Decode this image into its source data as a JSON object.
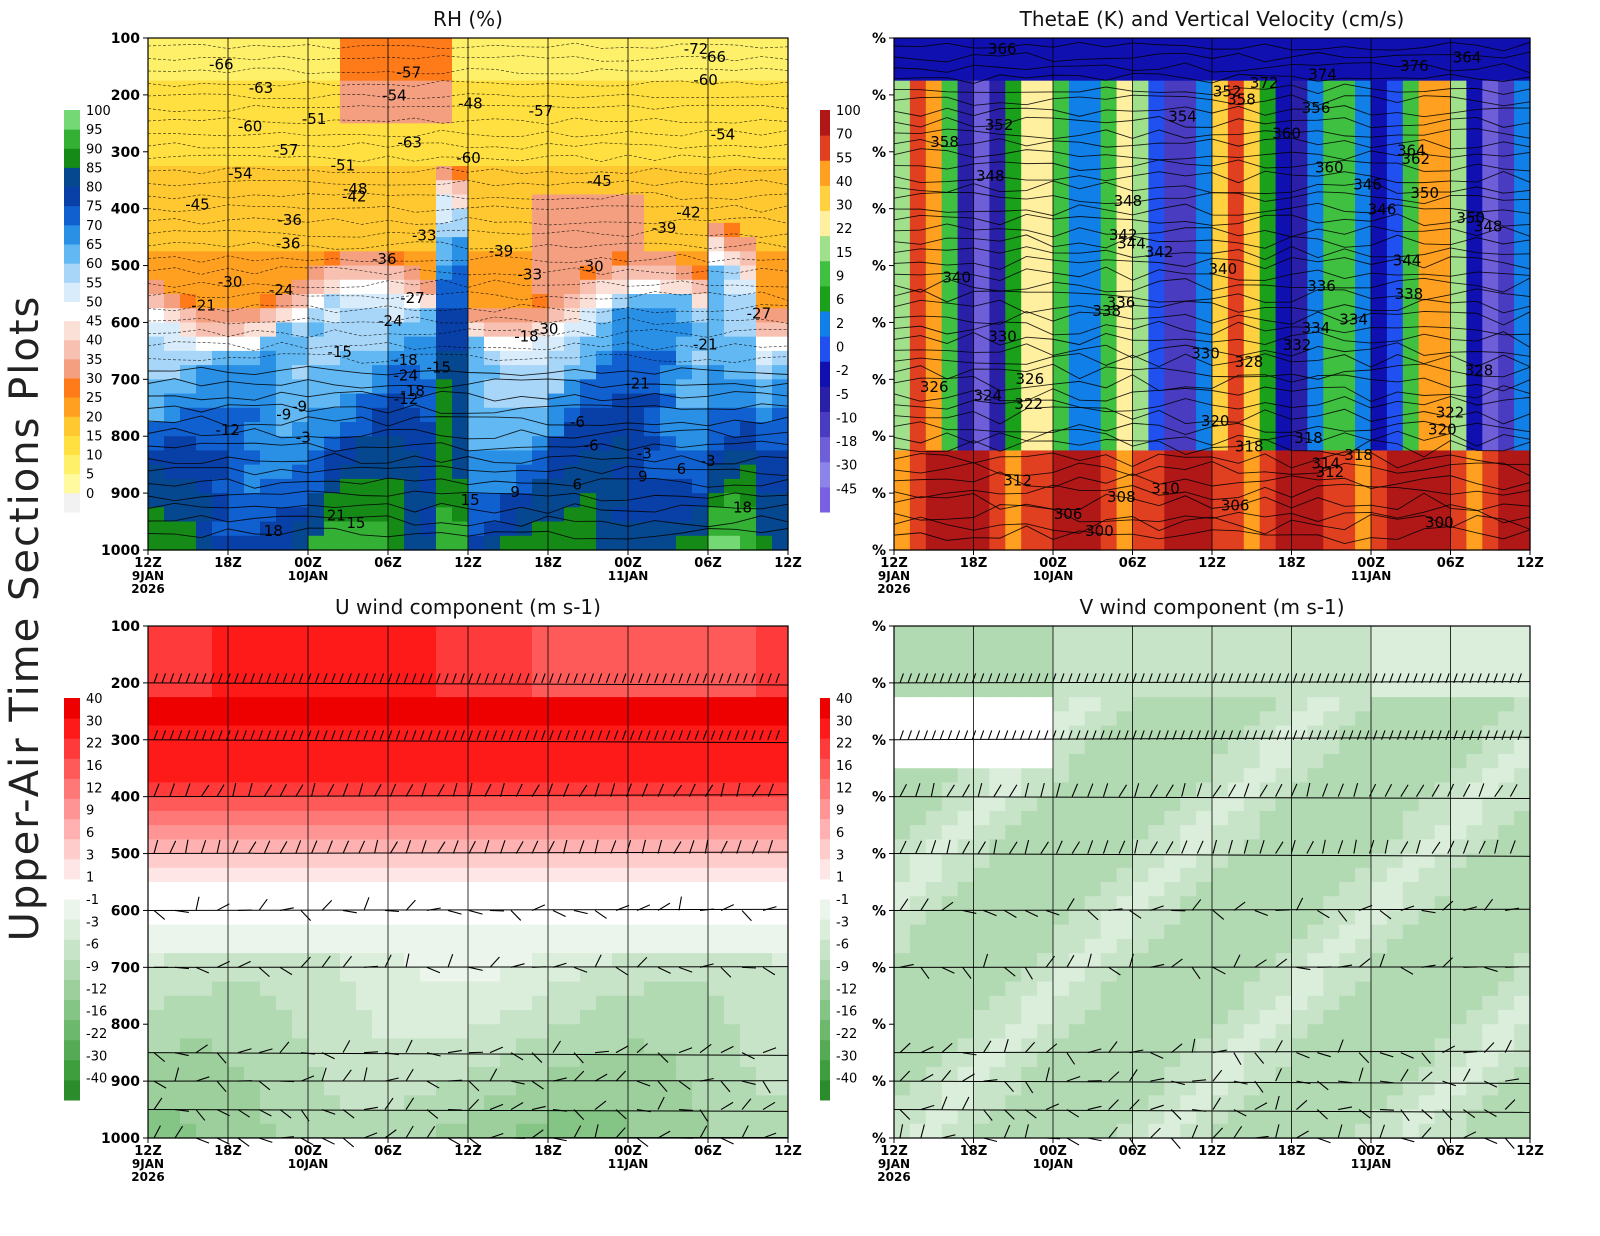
{
  "figure": {
    "side_title": "Upper-Air Time Sections Plots",
    "time_ticks": [
      "12Z",
      "18Z",
      "00Z",
      "06Z",
      "12Z",
      "18Z",
      "00Z",
      "06Z",
      "12Z"
    ],
    "date_labels": [
      {
        "tick": 0,
        "lines": [
          "9JAN",
          "2026"
        ]
      },
      {
        "tick": 2,
        "lines": [
          "10JAN"
        ]
      },
      {
        "tick": 6,
        "lines": [
          "11JAN"
        ]
      }
    ],
    "pressure_levels_hpa": [
      100,
      200,
      300,
      400,
      500,
      600,
      700,
      800,
      900,
      1000
    ],
    "right_axis_placeholder": "%"
  },
  "colors": {
    "rh": [
      "#f2f2f2",
      "#fff9a0",
      "#fff06a",
      "#ffe040",
      "#ffc830",
      "#ffa020",
      "#ff7a18",
      "#f4a080",
      "#f8c0b0",
      "#fbe0d8",
      "#ffffff",
      "#d8ecfb",
      "#a8d6f8",
      "#62b8f2",
      "#2a90e6",
      "#1060d0",
      "#0840a8",
      "#064890",
      "#168a16",
      "#34b034",
      "#74d874"
    ],
    "theta": [
      "#7860e0",
      "#8c84e8",
      "#6e5ed8",
      "#4a3cc0",
      "#2a20a8",
      "#1010b0",
      "#2050f0",
      "#1080e8",
      "#1aa01a",
      "#40c040",
      "#a0e08a",
      "#fff0a0",
      "#ffd040",
      "#ffa020",
      "#e04020",
      "#b01818"
    ],
    "u": [
      "#2a8c2a",
      "#3e9e3e",
      "#55ab55",
      "#6cb86c",
      "#84c484",
      "#9ccf9c",
      "#b2dab2",
      "#c8e4c8",
      "#dbeedb",
      "#ebf5eb",
      "#ffffff",
      "#ffe6e6",
      "#ffcccc",
      "#ffb0b0",
      "#ff9494",
      "#ff7878",
      "#ff5a5a",
      "#ff3a3a",
      "#ff1a1a",
      "#ee0000"
    ]
  },
  "chart_data": [
    {
      "type": "heatmap",
      "title": "RH (%)",
      "x": [
        "12Z 9JAN 2026",
        "18Z",
        "00Z 10JAN",
        "06Z",
        "12Z",
        "18Z",
        "00Z 11JAN",
        "06Z",
        "12Z"
      ],
      "ylim": [
        1000,
        100
      ],
      "y_scale": "pressure (hPa)",
      "colorbar": [
        0,
        5,
        10,
        15,
        20,
        25,
        30,
        35,
        40,
        45,
        50,
        55,
        60,
        65,
        70,
        75,
        80,
        85,
        90,
        95,
        100
      ],
      "contour_labels": [
        "-72",
        "-66",
        "-66",
        "-57",
        "-60",
        "-63",
        "-54",
        "-48",
        "-57",
        "-51",
        "-60",
        "-54",
        "-63",
        "-57",
        "-60",
        "-51",
        "-54",
        "-45",
        "-48",
        "-42",
        "-45",
        "-42",
        "-36",
        "-39",
        "-33",
        "-36",
        "-39",
        "-36",
        "-30",
        "-33",
        "-30",
        "-24",
        "-27",
        "-21",
        "-27",
        "-24",
        "-30",
        "-18",
        "-21",
        "-15",
        "-18",
        "-15",
        "-24",
        "-21",
        "-18",
        "-12",
        "-9",
        "-9",
        "-6",
        "-12",
        "-3",
        "-6",
        "-3",
        "-3",
        "6",
        "9",
        "6",
        "9",
        "15",
        "18",
        "21",
        "15",
        "18"
      ],
      "shading_summary": "dry (0-25%) above ~550 hPa, moist (65-100%) below ~600 hPa, narrow moist tongue near 11Z 10JAN reaching 450 hPa"
    },
    {
      "type": "heatmap",
      "title": "ThetaE (K) and Vertical Velocity (cm/s)",
      "x": [
        "12Z 9JAN 2026",
        "18Z",
        "00Z 10JAN",
        "06Z",
        "12Z",
        "18Z",
        "00Z 11JAN",
        "06Z",
        "12Z"
      ],
      "colorbar": [
        -45,
        -30,
        -18,
        -10,
        -5,
        -2,
        0,
        2,
        6,
        9,
        15,
        22,
        30,
        40,
        55,
        70,
        100
      ],
      "contour_labels": [
        "366",
        "364",
        "376",
        "374",
        "372",
        "352",
        "358",
        "356",
        "354",
        "352",
        "360",
        "358",
        "364",
        "362",
        "360",
        "348",
        "346",
        "350",
        "348",
        "346",
        "350",
        "348",
        "342",
        "344",
        "342",
        "344",
        "340",
        "340",
        "336",
        "338",
        "336",
        "338",
        "334",
        "334",
        "330",
        "332",
        "330",
        "328",
        "328",
        "326",
        "326",
        "324",
        "322",
        "322",
        "320",
        "320",
        "318",
        "318",
        "318",
        "314",
        "312",
        "312",
        "310",
        "308",
        "306",
        "306",
        "300",
        "300"
      ]
    },
    {
      "type": "heatmap",
      "title": "U wind component (m s-1)",
      "x": [
        "12Z 9JAN 2026",
        "18Z",
        "00Z 10JAN",
        "06Z",
        "12Z",
        "18Z",
        "00Z 11JAN",
        "06Z",
        "12Z"
      ],
      "ylim": [
        1000,
        100
      ],
      "colorbar": [
        -40,
        -30,
        -22,
        -16,
        -12,
        -9,
        -6,
        -3,
        -1,
        1,
        3,
        6,
        9,
        12,
        16,
        22,
        30,
        40
      ],
      "barb_levels_hpa": [
        200,
        300,
        400,
        500,
        600,
        700,
        850,
        900,
        950,
        1000
      ],
      "shading_summary": "strong westerlies (30-40+) 150-300 hPa, weakening to near 0 around 550 hPa, weak easterly (-3 to -9) below 600 hPa"
    },
    {
      "type": "heatmap",
      "title": "V wind component (m s-1)",
      "x": [
        "12Z 9JAN 2026",
        "18Z",
        "00Z 10JAN",
        "06Z",
        "12Z",
        "18Z",
        "00Z 11JAN",
        "06Z",
        "12Z"
      ],
      "colorbar": [
        -40,
        -30,
        -22,
        -16,
        -12,
        -9,
        -6,
        -3,
        -1,
        1,
        3,
        6,
        9,
        12,
        16,
        22,
        30,
        40
      ],
      "barb_levels_hpa": [
        200,
        300,
        400,
        500,
        600,
        700,
        850,
        900,
        950,
        1000
      ],
      "shading_summary": "weak northerly (-1 to -9) through most of column, near 0 at 200-300 hPa early"
    }
  ]
}
